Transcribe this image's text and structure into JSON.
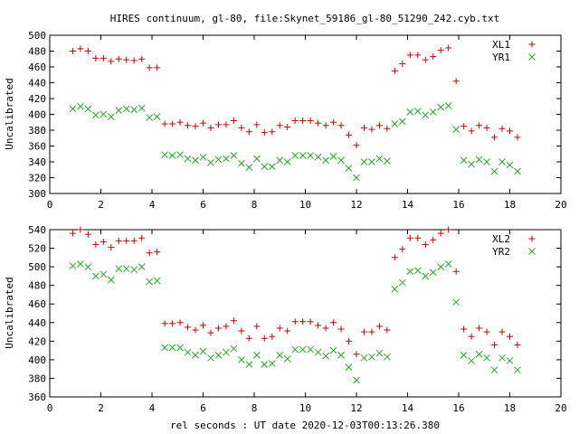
{
  "figure": {
    "title": "HIRES continuum, gl-80, file:Skynet_59186_gl-80_51290_242.cyb.txt",
    "xlabel": "rel seconds : UT date 2020-12-03T00:13:26.380"
  },
  "colors": {
    "red": "#cc0000",
    "green": "#22aa22",
    "axis": "#000000"
  },
  "chart_data": [
    {
      "type": "scatter",
      "title": "",
      "xlabel": "",
      "ylabel": "Uncalibrated",
      "xlim": [
        0,
        20
      ],
      "ylim": [
        300,
        500
      ],
      "xticks": [
        0,
        2,
        4,
        6,
        8,
        10,
        12,
        14,
        16,
        18,
        20
      ],
      "yticks": [
        300,
        320,
        340,
        360,
        380,
        400,
        420,
        440,
        460,
        480,
        500
      ],
      "grid": false,
      "legend_position": "top-right",
      "x": [
        0.9,
        1.2,
        1.5,
        1.8,
        2.1,
        2.4,
        2.7,
        3.0,
        3.3,
        3.6,
        3.9,
        4.2,
        4.5,
        4.8,
        5.1,
        5.4,
        5.7,
        6.0,
        6.3,
        6.6,
        6.9,
        7.2,
        7.5,
        7.8,
        8.1,
        8.4,
        8.7,
        9.0,
        9.3,
        9.6,
        9.9,
        10.2,
        10.5,
        10.8,
        11.1,
        11.4,
        11.7,
        12.0,
        12.3,
        12.6,
        12.9,
        13.2,
        13.5,
        13.8,
        14.1,
        14.4,
        14.7,
        15.0,
        15.3,
        15.6,
        15.9,
        16.2,
        16.5,
        16.8,
        17.1,
        17.4,
        17.7,
        18.0,
        18.3
      ],
      "series": [
        {
          "name": "XL1",
          "marker": "plus",
          "color": "#cc0000",
          "values": [
            480,
            483,
            480,
            471,
            471,
            467,
            470,
            469,
            468,
            470,
            459,
            459,
            388,
            388,
            390,
            386,
            385,
            389,
            383,
            387,
            387,
            392,
            383,
            378,
            387,
            377,
            378,
            386,
            384,
            392,
            392,
            392,
            389,
            386,
            390,
            386,
            374,
            361,
            383,
            381,
            386,
            382,
            455,
            464,
            475,
            475,
            469,
            473,
            481,
            484,
            442,
            385,
            379,
            386,
            383,
            371,
            382,
            379,
            371
          ]
        },
        {
          "name": "YR1",
          "marker": "cross",
          "color": "#22aa22",
          "values": [
            407,
            410,
            407,
            399,
            400,
            397,
            405,
            407,
            406,
            408,
            396,
            397,
            349,
            348,
            349,
            344,
            342,
            346,
            339,
            343,
            344,
            348,
            338,
            333,
            344,
            334,
            334,
            342,
            340,
            348,
            348,
            348,
            346,
            342,
            347,
            342,
            332,
            320,
            340,
            340,
            344,
            341,
            388,
            391,
            403,
            404,
            399,
            403,
            409,
            411,
            381,
            342,
            337,
            343,
            340,
            328,
            340,
            336,
            328
          ]
        }
      ]
    },
    {
      "type": "scatter",
      "title": "",
      "xlabel": "rel seconds : UT date 2020-12-03T00:13:26.380",
      "ylabel": "Uncalibrated",
      "xlim": [
        0,
        20
      ],
      "ylim": [
        360,
        540
      ],
      "xticks": [
        0,
        2,
        4,
        6,
        8,
        10,
        12,
        14,
        16,
        18,
        20
      ],
      "yticks": [
        360,
        380,
        400,
        420,
        440,
        460,
        480,
        500,
        520,
        540
      ],
      "grid": false,
      "legend_position": "top-right",
      "x": [
        0.9,
        1.2,
        1.5,
        1.8,
        2.1,
        2.4,
        2.7,
        3.0,
        3.3,
        3.6,
        3.9,
        4.2,
        4.5,
        4.8,
        5.1,
        5.4,
        5.7,
        6.0,
        6.3,
        6.6,
        6.9,
        7.2,
        7.5,
        7.8,
        8.1,
        8.4,
        8.7,
        9.0,
        9.3,
        9.6,
        9.9,
        10.2,
        10.5,
        10.8,
        11.1,
        11.4,
        11.7,
        12.0,
        12.3,
        12.6,
        12.9,
        13.2,
        13.5,
        13.8,
        14.1,
        14.4,
        14.7,
        15.0,
        15.3,
        15.6,
        15.9,
        16.2,
        16.5,
        16.8,
        17.1,
        17.4,
        17.7,
        18.0,
        18.3
      ],
      "series": [
        {
          "name": "XL2",
          "marker": "plus",
          "color": "#cc0000",
          "values": [
            536,
            540,
            535,
            524,
            527,
            521,
            528,
            528,
            528,
            531,
            515,
            516,
            439,
            439,
            440,
            435,
            432,
            437,
            429,
            434,
            436,
            442,
            431,
            423,
            436,
            423,
            425,
            434,
            431,
            441,
            441,
            441,
            437,
            434,
            440,
            433,
            420,
            406,
            430,
            430,
            436,
            432,
            510,
            519,
            531,
            531,
            524,
            529,
            536,
            540,
            495,
            433,
            425,
            434,
            430,
            416,
            430,
            425,
            416
          ]
        },
        {
          "name": "YR2",
          "marker": "cross",
          "color": "#22aa22",
          "values": [
            501,
            503,
            500,
            490,
            492,
            486,
            498,
            498,
            497,
            500,
            484,
            485,
            413,
            413,
            413,
            408,
            405,
            409,
            402,
            405,
            408,
            412,
            400,
            395,
            405,
            395,
            396,
            405,
            401,
            411,
            411,
            411,
            408,
            404,
            410,
            405,
            392,
            378,
            402,
            403,
            407,
            403,
            476,
            483,
            495,
            496,
            490,
            494,
            500,
            503,
            462,
            405,
            399,
            406,
            402,
            389,
            402,
            399,
            389
          ]
        }
      ]
    }
  ]
}
